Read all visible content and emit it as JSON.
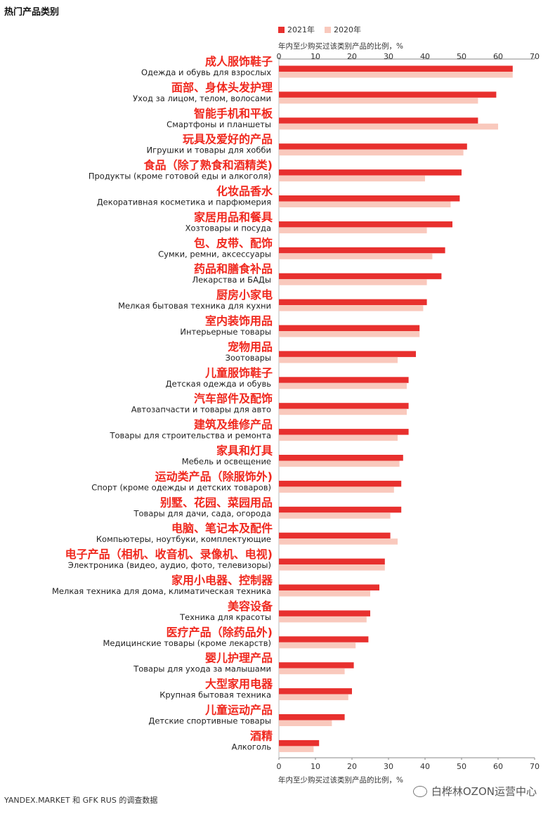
{
  "page": {
    "title": "热门产品类别",
    "x_axis_title": "年内至少购买过该类别产品的比例，%",
    "source": "YANDEX.MARKET 和 GFK RUS 的调查数据",
    "watermark": "白桦林OZON运营中心",
    "watermark_icon": "wechat-icon"
  },
  "colors": {
    "series_2021": "#e8302e",
    "series_2020": "#f9c9bd",
    "label_cn": "#f0281e",
    "label_ru": "#222222",
    "axis": "#888888"
  },
  "chart_data": {
    "type": "bar",
    "orientation": "horizontal",
    "xlabel": "年内至少购买过该类别产品的比例，%",
    "xlim": [
      0,
      70
    ],
    "x_ticks": [
      0,
      10,
      20,
      30,
      40,
      50,
      60,
      70
    ],
    "legend_position": "top",
    "categories": [
      {
        "cn": "成人服饰鞋子",
        "ru": "Одежда и обувь для взрослых"
      },
      {
        "cn": "面部、身体头发护理",
        "ru": "Уход за лицом, телом, волосами"
      },
      {
        "cn": "智能手机和平板",
        "ru": "Смартфоны и планшеты"
      },
      {
        "cn": "玩具及爱好的产品",
        "ru": "Игрушки и товары для хобби"
      },
      {
        "cn": "食品（除了熟食和酒精类)",
        "ru": "Продукты (кроме готовой еды и алкоголя)"
      },
      {
        "cn": "化妆品香水",
        "ru": "Декоративная косметика и парфюмерия"
      },
      {
        "cn": "家居用品和餐具",
        "ru": "Хозтовары и посуда"
      },
      {
        "cn": "包、皮带、配饰",
        "ru": "Сумки, ремни, аксессуары"
      },
      {
        "cn": "药品和膳食补品",
        "ru": "Лекарства и БАДы"
      },
      {
        "cn": "厨房小家电",
        "ru": "Мелкая бытовая техника для кухни"
      },
      {
        "cn": "室内装饰用品",
        "ru": "Интерьерные товары"
      },
      {
        "cn": "宠物用品",
        "ru": "Зоотовары"
      },
      {
        "cn": "儿童服饰鞋子",
        "ru": "Детская одежда и обувь"
      },
      {
        "cn": "汽车部件及配饰",
        "ru": "Автозапчасти и товары для авто"
      },
      {
        "cn": "建筑及维修产品",
        "ru": "Товары для строительства и ремонта"
      },
      {
        "cn": "家具和灯具",
        "ru": "Мебель и освещение"
      },
      {
        "cn": "运动类产品（除服饰外)",
        "ru": "Спорт (кроме одежды и детских товаров)"
      },
      {
        "cn": "别墅、花园、菜园用品",
        "ru": "Товары для дачи, сада, огорода"
      },
      {
        "cn": "电脑、笔记本及配件",
        "ru": "Компьютеры, ноутбуки, комплектующие"
      },
      {
        "cn": "电子产品（相机、收音机、录像机、电视)",
        "ru": "Электроника (видео, аудио, фото, телевизоры)"
      },
      {
        "cn": "家用小电器、控制器",
        "ru": "Мелкая техника для дома, климатическая техника"
      },
      {
        "cn": "美容设备",
        "ru": "Техника для красоты"
      },
      {
        "cn": "医疗产品（除药品外)",
        "ru": "Медицинские товары (кроме лекарств)"
      },
      {
        "cn": "婴儿护理产品",
        "ru": "Товары для ухода за малышами"
      },
      {
        "cn": "大型家用电器",
        "ru": "Крупная бытовая техника"
      },
      {
        "cn": "儿童运动产品",
        "ru": "Детские спортивные товары"
      },
      {
        "cn": "酒精",
        "ru": "Алкоголь"
      }
    ],
    "series": [
      {
        "name": "2021年",
        "values": [
          64,
          59.5,
          54.5,
          51.5,
          50,
          49.5,
          47.5,
          45.5,
          44.5,
          40.5,
          38.5,
          37.5,
          35.5,
          35.5,
          35.5,
          34,
          33.5,
          33.5,
          30.5,
          29,
          27.5,
          25,
          24.5,
          20.5,
          20,
          18,
          11
        ]
      },
      {
        "name": "2020年",
        "values": [
          64,
          54.5,
          60,
          50.5,
          40,
          47,
          40.5,
          42,
          40.5,
          39.5,
          38.5,
          32.5,
          35,
          35,
          32.5,
          33,
          31.5,
          30.5,
          32.5,
          29,
          25,
          24,
          21,
          18,
          19,
          14.5,
          9.5
        ]
      }
    ]
  }
}
